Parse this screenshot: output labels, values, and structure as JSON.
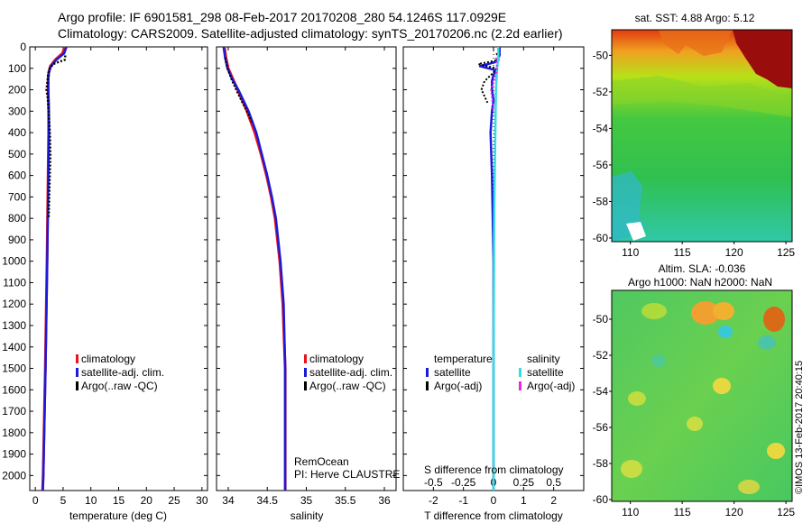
{
  "header": {
    "line1": "Argo profile: IF 6901581_298 08-Feb-2017 20170208_280 54.1246S 117.0929E",
    "line2": "Climatology: CARS2009. Satellite-adjusted climatology: synTS_20170206.nc (2.2d earlier)"
  },
  "colors": {
    "climatology": "#e8141c",
    "satellite": "#1a1adb",
    "argo": "#000000",
    "sal_satellite": "#33dde0",
    "sal_argo": "#ee22ee"
  },
  "chart_data": [
    {
      "type": "line",
      "id": "temperature",
      "xlabel": "temperature (deg C)",
      "xlim": [
        -1,
        31
      ],
      "ylim": [
        2070,
        0
      ],
      "xticks": [
        "0",
        "5",
        "10",
        "15",
        "20",
        "25",
        "30"
      ],
      "yticks": [
        "0",
        "100",
        "200",
        "300",
        "400",
        "500",
        "600",
        "700",
        "800",
        "900",
        "1000",
        "1100",
        "1200",
        "1300",
        "1400",
        "1500",
        "1600",
        "1700",
        "1800",
        "1900",
        "2000"
      ],
      "legend": [
        "climatology",
        "satellite-adj. clim.",
        "Argo(..raw -QC)"
      ],
      "series": [
        {
          "name": "climatology",
          "depth": [
            0,
            30,
            60,
            90,
            120,
            150,
            200,
            300,
            400,
            600,
            800,
            1000,
            1500,
            2000,
            2070
          ],
          "values": [
            5.3,
            4.9,
            3.6,
            2.7,
            2.4,
            2.3,
            2.3,
            2.4,
            2.4,
            2.3,
            2.2,
            2.1,
            1.8,
            1.4,
            1.3
          ]
        },
        {
          "name": "satellite-adj. clim.",
          "depth": [
            0,
            30,
            60,
            90,
            120,
            150,
            200,
            300,
            400,
            600,
            800,
            1000,
            1500,
            2000,
            2070
          ],
          "values": [
            5.6,
            5.2,
            3.8,
            2.8,
            2.45,
            2.35,
            2.35,
            2.45,
            2.45,
            2.35,
            2.25,
            2.15,
            1.85,
            1.45,
            1.35
          ]
        },
        {
          "name": "Argo(..raw -QC)",
          "depth": [
            40,
            60,
            80,
            100,
            130,
            160,
            200,
            230,
            260,
            300,
            400,
            500,
            600,
            700,
            800
          ],
          "values": [
            5.4,
            5.3,
            3.2,
            2.6,
            2.3,
            2.2,
            2.0,
            2.2,
            2.3,
            2.4,
            2.6,
            2.7,
            2.6,
            2.5,
            2.4
          ]
        }
      ]
    },
    {
      "type": "line",
      "id": "salinity",
      "xlabel": "salinity",
      "xlim": [
        33.85,
        36.15
      ],
      "ylim": [
        2070,
        0
      ],
      "xticks": [
        "34",
        "34.5",
        "35",
        "35.5",
        "36"
      ],
      "legend": [
        "climatology",
        "satellite-adj. clim.",
        "Argo(..raw -QC)"
      ],
      "annotation1": "RemOcean",
      "annotation2": "PI: Herve CLAUSTRE",
      "series": [
        {
          "name": "climatology",
          "depth": [
            0,
            50,
            100,
            150,
            200,
            300,
            400,
            500,
            600,
            700,
            800,
            1000,
            1200,
            1500,
            2000,
            2070
          ],
          "values": [
            33.95,
            33.97,
            34.0,
            34.06,
            34.12,
            34.24,
            34.34,
            34.42,
            34.49,
            34.55,
            34.6,
            34.66,
            34.7,
            34.73,
            34.73,
            34.73
          ]
        },
        {
          "name": "satellite-adj. clim.",
          "depth": [
            0,
            50,
            100,
            150,
            200,
            300,
            400,
            500,
            600,
            700,
            800,
            1000,
            1200,
            1500,
            2000,
            2070
          ],
          "values": [
            33.94,
            33.96,
            33.99,
            34.05,
            34.13,
            34.26,
            34.36,
            34.43,
            34.5,
            34.56,
            34.61,
            34.67,
            34.71,
            34.73,
            34.73,
            34.73
          ]
        },
        {
          "name": "Argo(..raw -QC)",
          "depth": [
            50,
            100,
            150,
            200,
            260,
            300,
            350
          ],
          "values": [
            33.96,
            33.99,
            34.04,
            34.1,
            34.18,
            34.24,
            34.3
          ]
        }
      ]
    },
    {
      "type": "line",
      "id": "difference",
      "xlabel": "T difference from climatology",
      "xlabel_top": "S difference from climatology",
      "xlim": [
        -3,
        3
      ],
      "ylim": [
        2070,
        0
      ],
      "xticks": [
        "-2",
        "-1",
        "0",
        "1",
        "2"
      ],
      "xticks_top": [
        "-0.5",
        "-0.25",
        "0",
        "0.25",
        "0.5"
      ],
      "legend_headers": [
        "temperature",
        "salinity"
      ],
      "legend": [
        "satellite",
        "Argo(-adj)",
        "satellite",
        "Argo(-adj)"
      ],
      "series": [
        {
          "name": "temperature satellite",
          "depth": [
            0,
            40,
            70,
            90,
            110,
            130,
            160,
            200,
            250,
            300,
            400,
            600,
            1000,
            2070
          ],
          "values": [
            0.2,
            0.2,
            0.1,
            -0.45,
            0.1,
            0.0,
            -0.05,
            -0.05,
            0.0,
            -0.05,
            -0.1,
            -0.05,
            0.0,
            0.0
          ]
        },
        {
          "name": "temperature Argo(-adj)",
          "depth": [
            30,
            60,
            80,
            100,
            120,
            160,
            200,
            230,
            260
          ],
          "values": [
            0.1,
            0.2,
            -0.5,
            0.1,
            0.0,
            -0.3,
            -0.4,
            -0.3,
            -0.2
          ]
        },
        {
          "name": "salinity satellite",
          "depth": [
            0,
            50,
            100,
            200,
            400,
            800,
            1500,
            2070
          ],
          "values": [
            0.04,
            0.04,
            0.03,
            0.02,
            0.015,
            0.005,
            0.0,
            0.0
          ]
        },
        {
          "name": "salinity Argo(-adj)",
          "depth": [
            50,
            100,
            150,
            200,
            250,
            300
          ],
          "values": [
            0.02,
            0.03,
            0.01,
            -0.02,
            -0.01,
            0.0
          ]
        }
      ]
    }
  ],
  "maps": {
    "sst_title": "sat. SST: 4.88 Argo: 5.12",
    "sla_title1": "Altim. SLA: -0.036",
    "sla_title2": "Argo h1000: NaN h2000: NaN",
    "yticks": [
      "-50",
      "-52",
      "-54",
      "-56",
      "-58",
      "-60"
    ],
    "xticks": [
      "110",
      "115",
      "120",
      "125"
    ],
    "credit": "©IMOS 13-Feb-2017 20:40:15"
  }
}
